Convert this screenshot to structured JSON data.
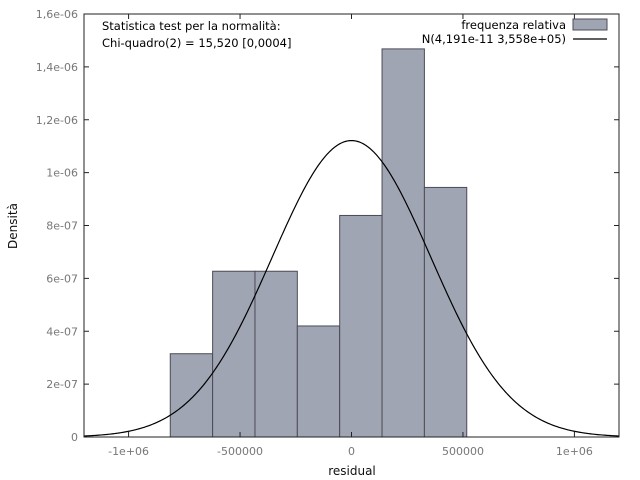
{
  "chart_data": {
    "type": "bar",
    "xlabel": "residual",
    "ylabel": "Densità",
    "xlim": [
      -1200000,
      1200000
    ],
    "ylim": [
      0,
      1.6e-06
    ],
    "bins": [
      {
        "x0": -813000,
        "x1": -623000,
        "value": 3.15e-07
      },
      {
        "x0": -623000,
        "x1": -433000,
        "value": 6.27e-07
      },
      {
        "x0": -433000,
        "x1": -243000,
        "value": 6.27e-07
      },
      {
        "x0": -243000,
        "x1": -53000,
        "value": 4.2e-07
      },
      {
        "x0": -53000,
        "x1": 137000,
        "value": 8.38e-07
      },
      {
        "x0": 137000,
        "x1": 327000,
        "value": 1.468e-06
      },
      {
        "x0": 327000,
        "x1": 517000,
        "value": 9.44e-07
      }
    ],
    "normal_curve": {
      "mean": 4.191e-11,
      "sd": 355800
    },
    "x_ticks": [
      {
        "value": -1000000,
        "label": "-1e+06"
      },
      {
        "value": -500000,
        "label": "-500000"
      },
      {
        "value": 0,
        "label": "0"
      },
      {
        "value": 500000,
        "label": "500000"
      },
      {
        "value": 1000000,
        "label": "1e+06"
      }
    ],
    "y_ticks": [
      {
        "value": 0,
        "label": "0"
      },
      {
        "value": 2e-07,
        "label": "2e-07"
      },
      {
        "value": 4e-07,
        "label": "4e-07"
      },
      {
        "value": 6e-07,
        "label": "6e-07"
      },
      {
        "value": 8e-07,
        "label": "8e-07"
      },
      {
        "value": 1e-06,
        "label": "1e-06"
      },
      {
        "value": 1.2e-06,
        "label": "1,2e-06"
      },
      {
        "value": 1.4e-06,
        "label": "1,4e-06"
      },
      {
        "value": 1.6e-06,
        "label": "1,6e-06"
      }
    ],
    "annotation": [
      "Statistica test per la normalità:",
      "Chi-quadro(2) = 15,520 [0,0004]"
    ],
    "legend": {
      "position": "top-right",
      "entries": [
        {
          "label": "frequenza relativa",
          "kind": "box"
        },
        {
          "label": "N(4,191e-11 3,558e+05)",
          "kind": "line"
        }
      ]
    },
    "grid": false,
    "colors": {
      "bar_fill": "#a0a5b4",
      "bar_stroke": "#4b4b55",
      "curve": "#000000",
      "axis": "#222222"
    }
  }
}
